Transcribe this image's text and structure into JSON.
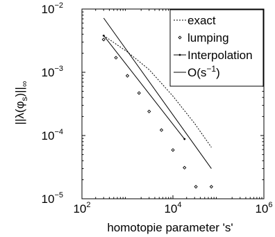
{
  "chart_data": {
    "type": "line",
    "title": "",
    "xlabel": "homotopie parameter 's'",
    "ylabel": "||λ(φ_s)||_∞",
    "xscale": "log",
    "yscale": "log",
    "xlim": [
      100,
      1000000
    ],
    "ylim": [
      1e-05,
      0.01
    ],
    "grid": false,
    "legend_position": "top-right",
    "x_ticks": [
      {
        "base": "10",
        "exp": "2",
        "value": 100
      },
      {
        "base": "10",
        "exp": "4",
        "value": 10000
      },
      {
        "base": "10",
        "exp": "6",
        "value": 1000000
      }
    ],
    "y_ticks": [
      {
        "base": "10",
        "exp": "−5",
        "value": 1e-05
      },
      {
        "base": "10",
        "exp": "−4",
        "value": 0.0001
      },
      {
        "base": "10",
        "exp": "−3",
        "value": 0.001
      },
      {
        "base": "10",
        "exp": "−2",
        "value": 0.01
      }
    ],
    "series": [
      {
        "name": "exact",
        "style": "dotted",
        "x": [
          300,
          1000,
          3000,
          10000,
          30000,
          70000
        ],
        "y": [
          0.0038,
          0.0021,
          0.0011,
          0.00042,
          0.000155,
          6.5e-05
        ]
      },
      {
        "name": "lumping",
        "style": "markers",
        "x": [
          300,
          560,
          1000,
          1800,
          3000,
          5600,
          10000,
          18000,
          32000,
          70000
        ],
        "y": [
          0.0033,
          0.0017,
          0.00088,
          0.00047,
          0.00024,
          0.000122,
          5.9e-05,
          3.1e-05,
          1.55e-05,
          1.55e-05
        ]
      },
      {
        "name": "Interpolation",
        "style": "line-with-points",
        "x": [
          300,
          18000
        ],
        "y": [
          0.0038,
          8.8e-05
        ]
      },
      {
        "name": "O(s",
        "name_exp": "−1",
        "name_suffix": ")",
        "style": "solid",
        "x": [
          300,
          70000
        ],
        "y": [
          0.0072,
          3e-05
        ]
      }
    ]
  }
}
